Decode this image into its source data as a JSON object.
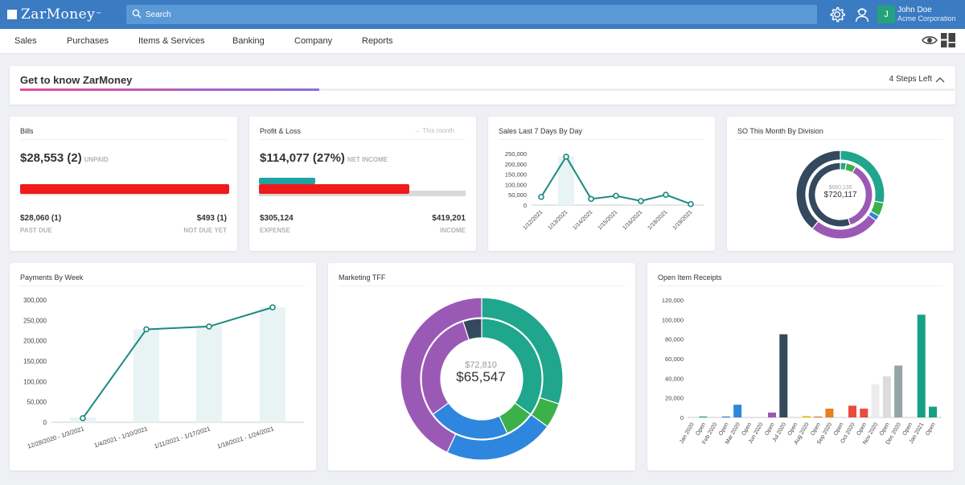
{
  "app": {
    "logo": "ZarMoney",
    "trademark": "™",
    "search_placeholder": "Search",
    "user_name": "John Doe",
    "user_org": "Acme Corporation",
    "avatar_initial": "J"
  },
  "nav": [
    "Sales",
    "Purchases",
    "Items & Services",
    "Banking",
    "Company",
    "Reports"
  ],
  "get_to_know": {
    "title": "Get to know ZarMoney",
    "steps_left": "4 Steps Left",
    "progress": 0.32
  },
  "bills": {
    "title": "Bills",
    "amount": "$28,553 (2)",
    "amount_tag": "UNPAID",
    "past_due": "$28,060 (1)",
    "past_due_label": "PAST DUE",
    "not_due": "$493 (1)",
    "not_due_label": "NOT DUE YET",
    "past_due_share": 0.983
  },
  "profit_loss": {
    "title": "Profit & Loss",
    "period": "← This month",
    "amount": "$114,077 (27%)",
    "amount_tag": "NET INCOME",
    "expense": "$305,124",
    "expense_label": "EXPENSE",
    "income": "$419,201",
    "income_label": "INCOME"
  },
  "sales_7_days": {
    "title": "Sales Last 7 Days By Day",
    "chart_data": {
      "type": "line",
      "x": [
        "1/12/2021",
        "1/13/2021",
        "1/14/2021",
        "1/15/2021",
        "1/16/2021",
        "1/18/2021",
        "1/19/2021"
      ],
      "values": [
        40000,
        235000,
        30000,
        45000,
        20000,
        50000,
        5000
      ],
      "y_ticks": [
        "250,000",
        "200,000",
        "150,000",
        "100,000",
        "50,000",
        "0"
      ],
      "ylim": [
        0,
        250000
      ]
    }
  },
  "so_division": {
    "title": "SO This Month By Division",
    "secondary_value": "$680,136",
    "primary_value": "$720,117",
    "chart_data": {
      "type": "pie",
      "outer": [
        {
          "value": 28,
          "color": "#1fa68c"
        },
        {
          "value": 5,
          "color": "#3cb14a"
        },
        {
          "value": 2,
          "color": "#2e86de"
        },
        {
          "value": 26,
          "color": "#9b59b6"
        },
        {
          "value": 39,
          "color": "#34495e"
        }
      ],
      "inner": [
        {
          "value": 3,
          "color": "#1fa68c"
        },
        {
          "value": 5,
          "color": "#3cb14a"
        },
        {
          "value": 37,
          "color": "#9b59b6"
        },
        {
          "value": 55,
          "color": "#34495e"
        }
      ]
    }
  },
  "payments_week": {
    "title": "Payments By Week",
    "chart_data": {
      "type": "line",
      "categories": [
        "12/28/2020 - 1/3/2021",
        "1/4/2021 - 1/10/2021",
        "1/11/2021 - 1/17/2021",
        "1/18/2021 - 1/24/2021"
      ],
      "values": [
        10000,
        228000,
        235000,
        282000
      ],
      "bar_values": [
        12000,
        228000,
        238000,
        282000
      ],
      "y_ticks": [
        "300,000",
        "250,000",
        "200,000",
        "150,000",
        "100,000",
        "50,000",
        "0"
      ],
      "ylim": [
        0,
        300000
      ]
    }
  },
  "marketing_tff": {
    "title": "Marketing TFF",
    "secondary_value": "$72,810",
    "primary_value": "$65,547",
    "chart_data": {
      "type": "pie",
      "outer": [
        {
          "value": 30,
          "color": "#1fa68c"
        },
        {
          "value": 5,
          "color": "#3cb14a"
        },
        {
          "value": 22,
          "color": "#2e86de"
        },
        {
          "value": 43,
          "color": "#9b59b6"
        }
      ],
      "inner": [
        {
          "value": 35,
          "color": "#1fa68c"
        },
        {
          "value": 8,
          "color": "#3cb14a"
        },
        {
          "value": 22,
          "color": "#2e86de"
        },
        {
          "value": 30,
          "color": "#9b59b6"
        },
        {
          "value": 5,
          "color": "#34495e"
        }
      ]
    }
  },
  "open_receipts": {
    "title": "Open Item Receipts",
    "chart_data": {
      "type": "bar",
      "categories": [
        "Jan 2020",
        "Open",
        "Feb 2020",
        "Open",
        "Mar 2020",
        "Open",
        "Jun 2020",
        "Open",
        "Jul 2020",
        "Open",
        "Aug 2020",
        "Open",
        "Sep 2020",
        "Open",
        "Oct 2020",
        "Open",
        "Nov 2020",
        "Open",
        "Dec 2020",
        "Open",
        "Jan 2021",
        "Open"
      ],
      "bars": [
        {
          "category_index": 0,
          "value": 0,
          "color": "#1fa68c"
        },
        {
          "category_index": 1,
          "value": 400,
          "color": "#1fa68c"
        },
        {
          "category_index": 2,
          "value": 0,
          "color": "#2e86de"
        },
        {
          "category_index": 3,
          "value": 1000,
          "color": "#2e86de"
        },
        {
          "category_index": 4,
          "value": 13000,
          "color": "#2e86de"
        },
        {
          "category_index": 5,
          "value": 0,
          "color": "#9b59b6"
        },
        {
          "category_index": 6,
          "value": 0,
          "color": "#9b59b6"
        },
        {
          "category_index": 7,
          "value": 5000,
          "color": "#9b59b6"
        },
        {
          "category_index": 8,
          "value": 85000,
          "color": "#34495e"
        },
        {
          "category_index": 9,
          "value": 0,
          "color": "#f1c40f"
        },
        {
          "category_index": 10,
          "value": 1500,
          "color": "#f1c40f"
        },
        {
          "category_index": 11,
          "value": 1000,
          "color": "#e67e22"
        },
        {
          "category_index": 12,
          "value": 9000,
          "color": "#e67e22"
        },
        {
          "category_index": 13,
          "value": 0,
          "color": "#e74c3c"
        },
        {
          "category_index": 14,
          "value": 12000,
          "color": "#e74c3c"
        },
        {
          "category_index": 15,
          "value": 9000,
          "color": "#e74c3c"
        },
        {
          "category_index": 16,
          "value": 34000,
          "color": "#ececec"
        },
        {
          "category_index": 17,
          "value": 42000,
          "color": "#dcdcdc"
        },
        {
          "category_index": 18,
          "value": 53000,
          "color": "#95a5a6"
        },
        {
          "category_index": 19,
          "value": 0,
          "color": "#16a085"
        },
        {
          "category_index": 20,
          "value": 105000,
          "color": "#16a085"
        },
        {
          "category_index": 21,
          "value": 11000,
          "color": "#16a085"
        }
      ],
      "y_ticks": [
        "120,000",
        "100,000",
        "80,000",
        "60,000",
        "40,000",
        "20,000",
        "0"
      ],
      "ylim": [
        0,
        120000
      ]
    }
  },
  "colors": {
    "topbar": "#3b7bc2",
    "accent_teal": "#1fa68c",
    "red_bar": "#f01a1a"
  },
  "icons": [
    "search-icon",
    "gear-icon",
    "user-support-icon",
    "eye-icon",
    "dashboard-layout-icon",
    "chevron-up-icon"
  ]
}
